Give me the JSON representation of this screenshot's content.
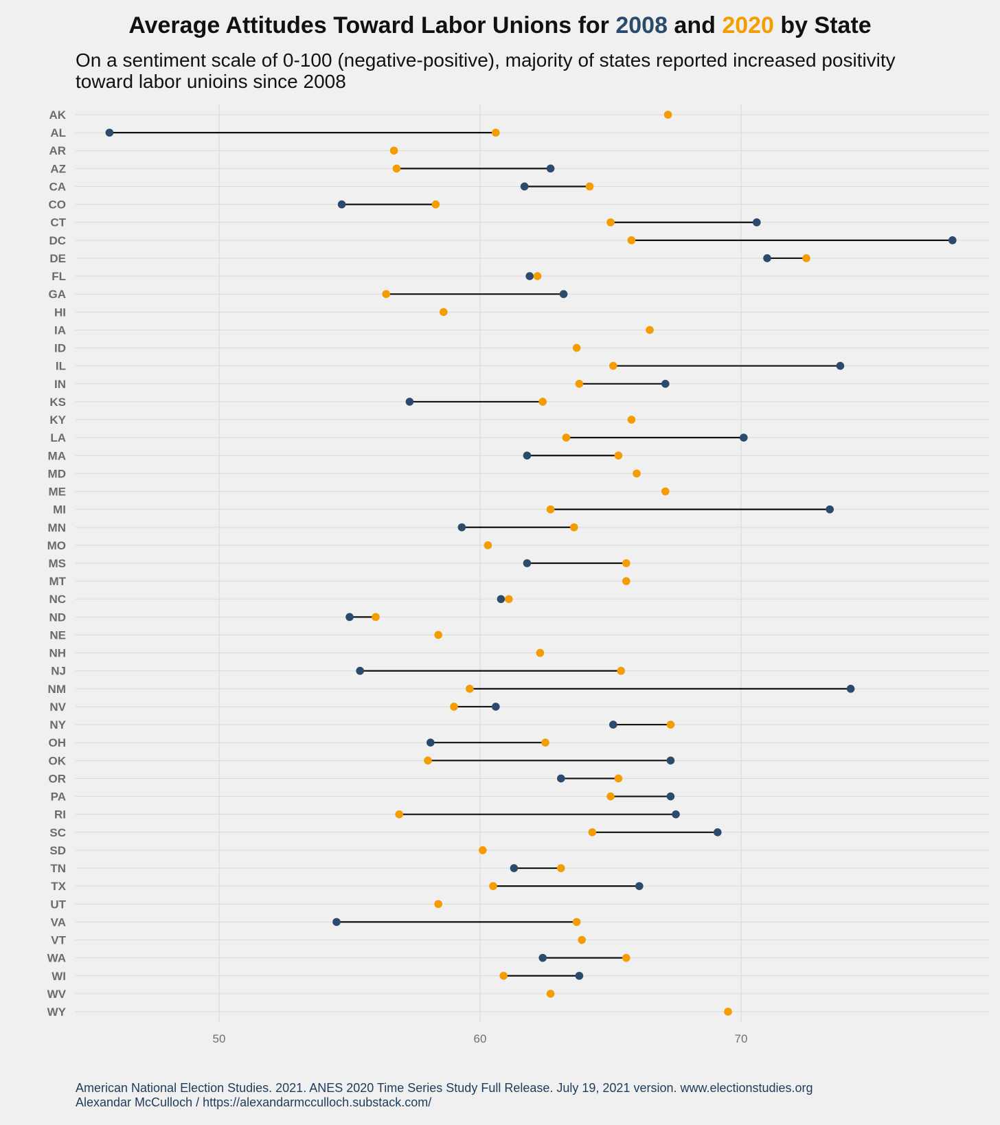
{
  "title": {
    "prefix": "Average Attitudes Toward Labor Unions for ",
    "year1": "2008",
    "mid": " and ",
    "year2": "2020",
    "suffix": " by State"
  },
  "subtitle": "On a sentiment scale of 0-100 (negative-positive), majority of states reported increased positivity toward labor unioins since 2008",
  "caption": {
    "line1": "American National Election Studies. 2021. ANES 2020 Time Series Study Full Release. July 19, 2021 version. www.electionstudies.org",
    "line2": "Alexandar McCulloch / https://alexandarmcculloch.substack.com/"
  },
  "colors": {
    "background": "#f0f0f0",
    "y2008": "#2a4b6b",
    "y2020": "#f59c00",
    "connector": "#111111",
    "grid": "#d9d9d9"
  },
  "chart_data": {
    "type": "dumbbell",
    "title": "Average Attitudes Toward Labor Unions for 2008 and 2020 by State",
    "xlim": [
      44.5,
      79.5
    ],
    "x_ticks": [
      50,
      60,
      70
    ],
    "grid": true,
    "series": [
      {
        "name": "2008",
        "color": "#2a4b6b"
      },
      {
        "name": "2020",
        "color": "#f59c00"
      }
    ],
    "states": [
      {
        "state": "AK",
        "v2008": null,
        "v2020": 67.2
      },
      {
        "state": "AL",
        "v2008": 45.8,
        "v2020": 60.6
      },
      {
        "state": "AR",
        "v2008": null,
        "v2020": 56.7
      },
      {
        "state": "AZ",
        "v2008": 62.7,
        "v2020": 56.8
      },
      {
        "state": "CA",
        "v2008": 61.7,
        "v2020": 64.2
      },
      {
        "state": "CO",
        "v2008": 54.7,
        "v2020": 58.3
      },
      {
        "state": "CT",
        "v2008": 70.6,
        "v2020": 65.0
      },
      {
        "state": "DC",
        "v2008": 78.1,
        "v2020": 65.8
      },
      {
        "state": "DE",
        "v2008": 71.0,
        "v2020": 72.5
      },
      {
        "state": "FL",
        "v2008": 61.9,
        "v2020": 62.2
      },
      {
        "state": "GA",
        "v2008": 63.2,
        "v2020": 56.4
      },
      {
        "state": "HI",
        "v2008": null,
        "v2020": 58.6
      },
      {
        "state": "IA",
        "v2008": null,
        "v2020": 66.5
      },
      {
        "state": "ID",
        "v2008": null,
        "v2020": 63.7
      },
      {
        "state": "IL",
        "v2008": 73.8,
        "v2020": 65.1
      },
      {
        "state": "IN",
        "v2008": 67.1,
        "v2020": 63.8
      },
      {
        "state": "KS",
        "v2008": 57.3,
        "v2020": 62.4
      },
      {
        "state": "KY",
        "v2008": null,
        "v2020": 65.8
      },
      {
        "state": "LA",
        "v2008": 70.1,
        "v2020": 63.3
      },
      {
        "state": "MA",
        "v2008": 61.8,
        "v2020": 65.3
      },
      {
        "state": "MD",
        "v2008": null,
        "v2020": 66.0
      },
      {
        "state": "ME",
        "v2008": null,
        "v2020": 67.1
      },
      {
        "state": "MI",
        "v2008": 73.4,
        "v2020": 62.7
      },
      {
        "state": "MN",
        "v2008": 59.3,
        "v2020": 63.6
      },
      {
        "state": "MO",
        "v2008": null,
        "v2020": 60.3
      },
      {
        "state": "MS",
        "v2008": 61.8,
        "v2020": 65.6
      },
      {
        "state": "MT",
        "v2008": null,
        "v2020": 65.6
      },
      {
        "state": "NC",
        "v2008": 60.8,
        "v2020": 61.1
      },
      {
        "state": "ND",
        "v2008": 55.0,
        "v2020": 56.0
      },
      {
        "state": "NE",
        "v2008": null,
        "v2020": 58.4
      },
      {
        "state": "NH",
        "v2008": null,
        "v2020": 62.3
      },
      {
        "state": "NJ",
        "v2008": 55.4,
        "v2020": 65.4
      },
      {
        "state": "NM",
        "v2008": 74.2,
        "v2020": 59.6
      },
      {
        "state": "NV",
        "v2008": 60.6,
        "v2020": 59.0
      },
      {
        "state": "NY",
        "v2008": 65.1,
        "v2020": 67.3
      },
      {
        "state": "OH",
        "v2008": 58.1,
        "v2020": 62.5
      },
      {
        "state": "OK",
        "v2008": 67.3,
        "v2020": 58.0
      },
      {
        "state": "OR",
        "v2008": 63.1,
        "v2020": 65.3
      },
      {
        "state": "PA",
        "v2008": 67.3,
        "v2020": 65.0
      },
      {
        "state": "RI",
        "v2008": 67.5,
        "v2020": 56.9
      },
      {
        "state": "SC",
        "v2008": 69.1,
        "v2020": 64.3
      },
      {
        "state": "SD",
        "v2008": null,
        "v2020": 60.1
      },
      {
        "state": "TN",
        "v2008": 61.3,
        "v2020": 63.1
      },
      {
        "state": "TX",
        "v2008": 66.1,
        "v2020": 60.5
      },
      {
        "state": "UT",
        "v2008": null,
        "v2020": 58.4
      },
      {
        "state": "VA",
        "v2008": 54.5,
        "v2020": 63.7
      },
      {
        "state": "VT",
        "v2008": null,
        "v2020": 63.9
      },
      {
        "state": "WA",
        "v2008": 62.4,
        "v2020": 65.6
      },
      {
        "state": "WI",
        "v2008": 63.8,
        "v2020": 60.9
      },
      {
        "state": "WV",
        "v2008": null,
        "v2020": 62.7
      },
      {
        "state": "WY",
        "v2008": null,
        "v2020": 69.5
      }
    ]
  }
}
